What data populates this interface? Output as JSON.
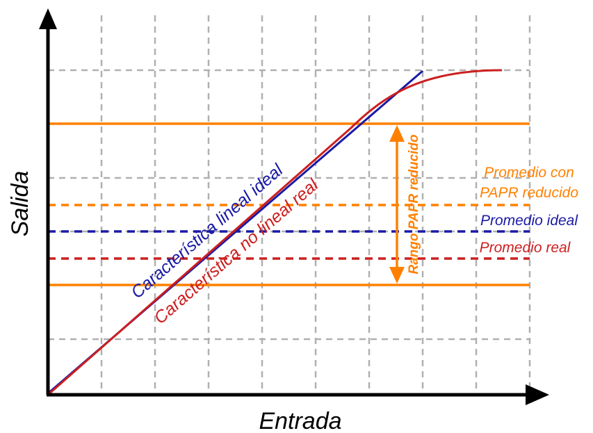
{
  "axes": {
    "xlabel": "Entrada",
    "ylabel": "Salida"
  },
  "curves": {
    "ideal": {
      "label": "Característica lineal ideal",
      "color": "#1a1aa6"
    },
    "real": {
      "label": "Característica no lineal real",
      "color": "#cc1f1f"
    }
  },
  "range": {
    "label": "Rango PAPR reducido",
    "color": "#ff8000"
  },
  "averages": {
    "reduced": {
      "line1": "Promedio con",
      "line2": "PAPR reducido",
      "color": "#ff8000"
    },
    "ideal": {
      "label": "Promedio ideal",
      "color": "#1a1aa6"
    },
    "real": {
      "label": "Promedio real",
      "color": "#cc1f1f"
    }
  },
  "grid": {
    "visible": true,
    "style": "dashed",
    "color": "#b0b0b0"
  },
  "axis_color": "#000000"
}
